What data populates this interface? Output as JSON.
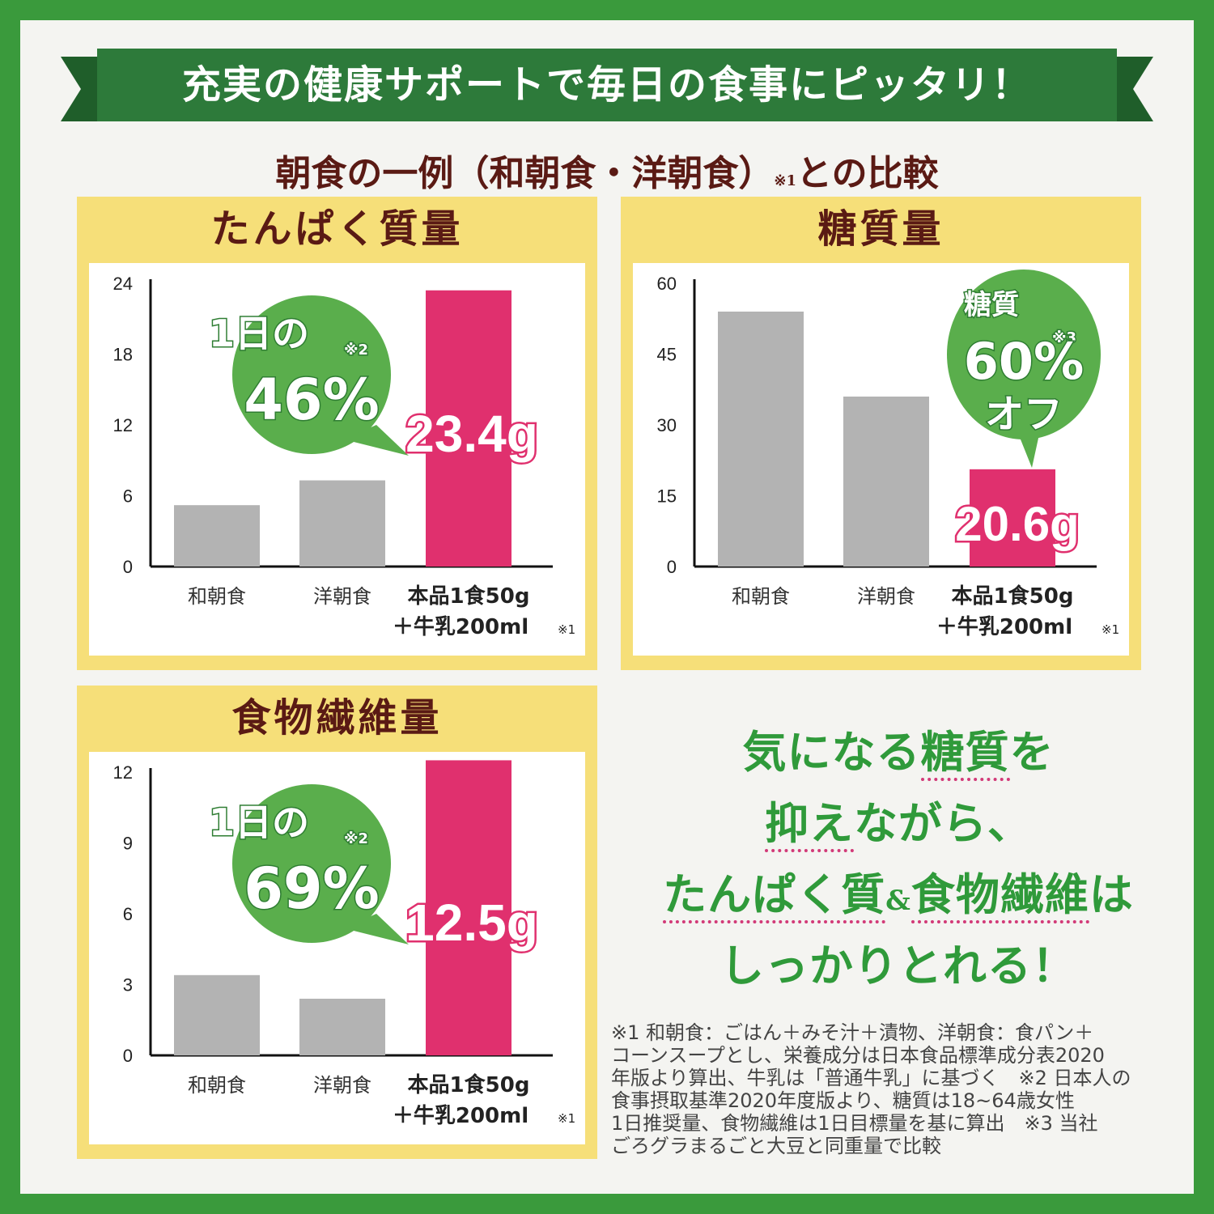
{
  "banner": {
    "title": "充実の健康サポートで毎日の食事にピッタリ！"
  },
  "subtitle": {
    "text": "朝食の一例（和朝食・洋朝食）",
    "note": "※1",
    "suffix": "との比較"
  },
  "colors": {
    "frame": "#3a9a3c",
    "banner": "#2d7a3a",
    "panel": "#f6df79",
    "gray_bar": "#b3b3b3",
    "pink_bar": "#e0306e",
    "bubble": "#5aae4c",
    "title_text": "#5a1a14"
  },
  "chart_data": [
    {
      "type": "bar",
      "title": "たんぱく質量",
      "categories": [
        "和朝食",
        "洋朝食",
        "本品1食50g＋牛乳200ml"
      ],
      "category_lines": [
        [
          "和朝食"
        ],
        [
          "洋朝食"
        ],
        [
          "本品1食50g",
          "＋牛乳200ml"
        ]
      ],
      "category_note": "※1",
      "values": [
        5.2,
        7.3,
        23.4
      ],
      "colors": [
        "#b3b3b3",
        "#b3b3b3",
        "#e0306e"
      ],
      "ylim": [
        0,
        24
      ],
      "yticks": [
        0,
        6,
        12,
        18,
        24
      ],
      "value_label": "23.4g",
      "bubble": {
        "line1": "1日の",
        "note": "※2",
        "line2": "46%"
      }
    },
    {
      "type": "bar",
      "title": "糖質量",
      "categories": [
        "和朝食",
        "洋朝食",
        "本品1食50g＋牛乳200ml"
      ],
      "category_lines": [
        [
          "和朝食"
        ],
        [
          "洋朝食"
        ],
        [
          "本品1食50g",
          "＋牛乳200ml"
        ]
      ],
      "category_note": "※1",
      "values": [
        54,
        36,
        20.6
      ],
      "colors": [
        "#b3b3b3",
        "#b3b3b3",
        "#e0306e"
      ],
      "ylim": [
        0,
        60
      ],
      "yticks": [
        0,
        15,
        30,
        45,
        60
      ],
      "value_label": "20.6g",
      "bubble": {
        "line1": "糖質",
        "note": "※3",
        "line2": "60%",
        "line3": "オフ"
      }
    },
    {
      "type": "bar",
      "title": "食物繊維量",
      "categories": [
        "和朝食",
        "洋朝食",
        "本品1食50g＋牛乳200ml"
      ],
      "category_lines": [
        [
          "和朝食"
        ],
        [
          "洋朝食"
        ],
        [
          "本品1食50g",
          "＋牛乳200ml"
        ]
      ],
      "category_note": "※1",
      "values": [
        3.4,
        2.4,
        12.5
      ],
      "colors": [
        "#b3b3b3",
        "#b3b3b3",
        "#e0306e"
      ],
      "ylim": [
        0,
        12
      ],
      "yticks": [
        0,
        3,
        6,
        9,
        12
      ],
      "value_label": "12.5g",
      "bubble": {
        "line1": "1日の",
        "note": "※2",
        "line2": "69%"
      }
    }
  ],
  "message": {
    "line1_a": "気になる",
    "line1_b": "糖質",
    "line1_c": "を",
    "line2_a": "抑え",
    "line2_b": "ながら、",
    "line3_a": "たんぱく質",
    "line3_b": "&",
    "line3_c": "食物繊維",
    "line3_d": "は",
    "line4": "しっかりとれる！"
  },
  "footnote": {
    "lines": [
      "※1 和朝食：ごはん＋みそ汁＋漬物、洋朝食：食パン＋",
      "コーンスープとし、栄養成分は日本食品標準成分表2020",
      "年版より算出、牛乳は「普通牛乳」に基づく　※2 日本人の",
      "食事摂取基準2020年度版より、糖質は18~64歳女性",
      "1日推奨量、食物繊維は1日目標量を基に算出　※3 当社",
      "ごろグラまるごと大豆と同重量で比較"
    ]
  }
}
